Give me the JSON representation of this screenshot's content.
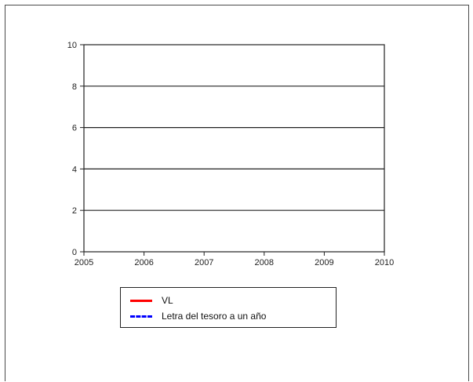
{
  "chart_data": {
    "type": "line",
    "title": "",
    "xlabel": "",
    "ylabel": "",
    "x_ticks": [
      "2005",
      "2006",
      "2007",
      "2008",
      "2009",
      "2010"
    ],
    "y_ticks": [
      "0",
      "2",
      "4",
      "6",
      "8",
      "10"
    ],
    "xlim": [
      2005,
      2010
    ],
    "ylim": [
      0,
      10
    ],
    "grid": "horizontal",
    "legend_position": "bottom",
    "series": [
      {
        "name": "VL",
        "color": "#ff0000",
        "style": "solid",
        "values": []
      },
      {
        "name": "Letra del tesoro a un año",
        "color": "#0000ff",
        "style": "dashed",
        "values": []
      }
    ]
  }
}
